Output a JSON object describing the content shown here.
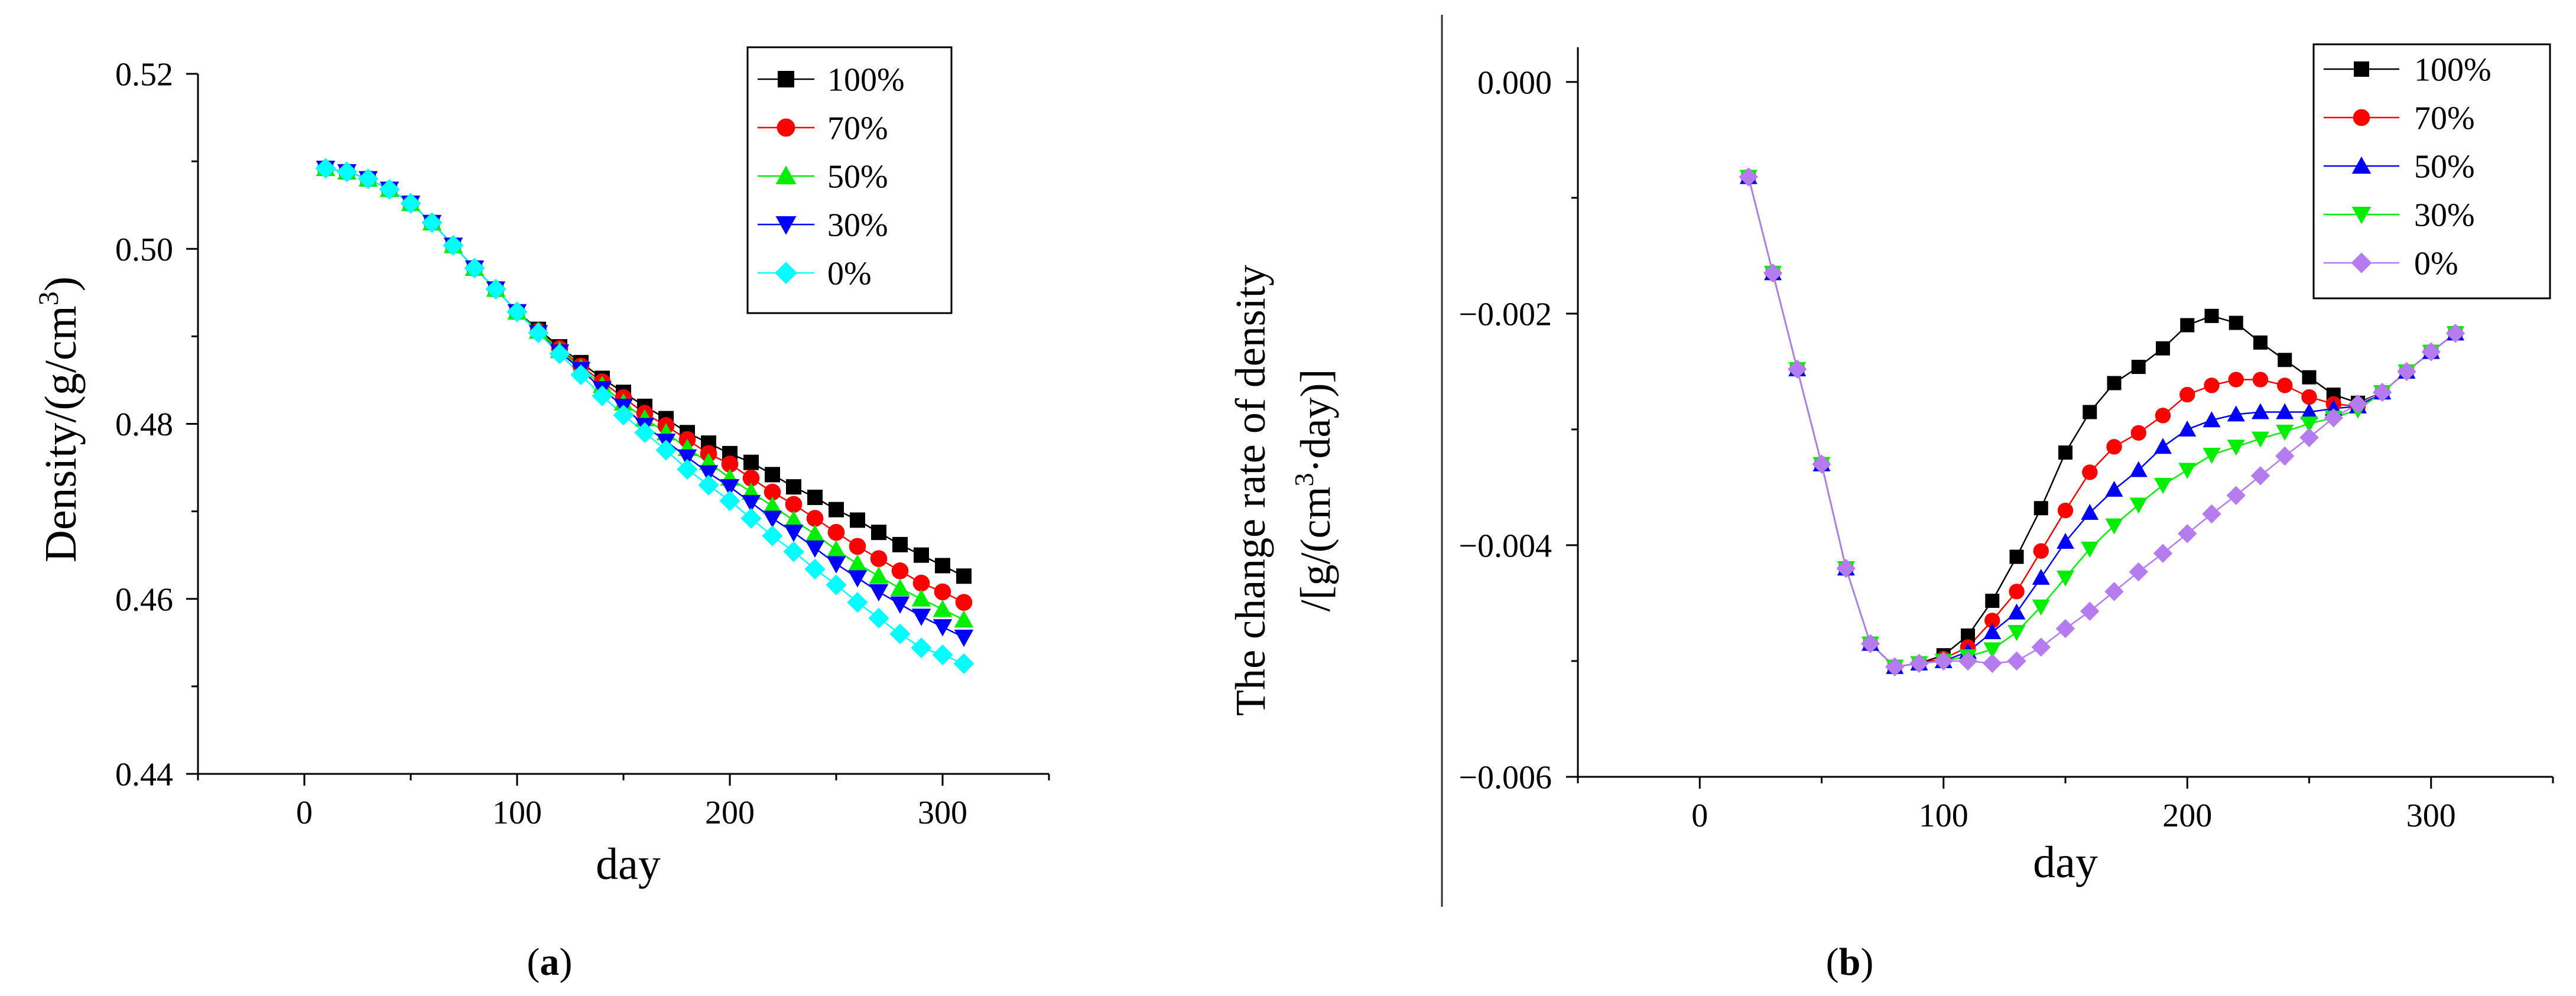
{
  "chart_data": [
    {
      "type": "scatter",
      "panel_label": "a",
      "title": "",
      "xlabel": "day",
      "ylabel_main": "Density/(g/cm",
      "ylabel_sup": "3",
      "ylabel_tail": ")",
      "xlim": [
        -50,
        350
      ],
      "ylim": [
        0.44,
        0.52
      ],
      "xticks": [
        0,
        100,
        200,
        300
      ],
      "xtick_labels": [
        "0",
        "100",
        "200",
        "300"
      ],
      "yticks": [
        0.44,
        0.46,
        0.48,
        0.5,
        0.52
      ],
      "ytick_labels": [
        "0.44",
        "0.46",
        "0.48",
        "0.50",
        "0.52"
      ],
      "legend_position": "top-right",
      "x": [
        10,
        20,
        30,
        40,
        50,
        60,
        70,
        80,
        90,
        100,
        110,
        120,
        130,
        140,
        150,
        160,
        170,
        180,
        190,
        200,
        210,
        220,
        230,
        240,
        250,
        260,
        270,
        280,
        290,
        300,
        310
      ],
      "series": [
        {
          "name": "100%",
          "color": "#000000",
          "marker": "square",
          "values": [
            0.5092,
            0.5088,
            0.508,
            0.5068,
            0.5052,
            0.503,
            0.5004,
            0.4978,
            0.4954,
            0.4928,
            0.4908,
            0.4888,
            0.487,
            0.4852,
            0.4836,
            0.482,
            0.4806,
            0.479,
            0.4778,
            0.4766,
            0.4756,
            0.4742,
            0.4728,
            0.4716,
            0.4702,
            0.469,
            0.4676,
            0.4662,
            0.465,
            0.4638,
            0.4626
          ]
        },
        {
          "name": "70%",
          "color": "#ff0000",
          "marker": "circle",
          "values": [
            0.5092,
            0.5088,
            0.508,
            0.5068,
            0.5052,
            0.503,
            0.5004,
            0.4978,
            0.4954,
            0.4928,
            0.4906,
            0.4886,
            0.4866,
            0.4848,
            0.483,
            0.4812,
            0.4798,
            0.4782,
            0.4766,
            0.4754,
            0.4738,
            0.4722,
            0.4708,
            0.4692,
            0.4676,
            0.466,
            0.4646,
            0.4632,
            0.4618,
            0.4608,
            0.4596
          ]
        },
        {
          "name": "50%",
          "color": "#00ee00",
          "marker": "triangle-up",
          "values": [
            0.5092,
            0.5088,
            0.508,
            0.5068,
            0.5052,
            0.503,
            0.5004,
            0.4978,
            0.4954,
            0.4928,
            0.4906,
            0.4884,
            0.4864,
            0.4844,
            0.4824,
            0.4806,
            0.479,
            0.4772,
            0.4756,
            0.4738,
            0.4722,
            0.4706,
            0.469,
            0.4674,
            0.4656,
            0.464,
            0.4626,
            0.4612,
            0.46,
            0.4588,
            0.4576
          ]
        },
        {
          "name": "30%",
          "color": "#0000ff",
          "marker": "triangle-down",
          "values": [
            0.5092,
            0.5088,
            0.508,
            0.5068,
            0.5052,
            0.503,
            0.5004,
            0.4978,
            0.4954,
            0.4928,
            0.4904,
            0.4882,
            0.4862,
            0.484,
            0.482,
            0.4798,
            0.478,
            0.4762,
            0.4744,
            0.4728,
            0.471,
            0.4692,
            0.4676,
            0.4658,
            0.464,
            0.4624,
            0.4608,
            0.4594,
            0.458,
            0.4568,
            0.4556
          ]
        },
        {
          "name": "0%",
          "color": "#00ffff",
          "marker": "diamond",
          "values": [
            0.5092,
            0.5088,
            0.508,
            0.5068,
            0.5052,
            0.503,
            0.5004,
            0.4978,
            0.4954,
            0.4928,
            0.4904,
            0.488,
            0.4856,
            0.4832,
            0.481,
            0.479,
            0.477,
            0.4748,
            0.473,
            0.4712,
            0.4692,
            0.4672,
            0.4654,
            0.4634,
            0.4616,
            0.4596,
            0.4578,
            0.456,
            0.4544,
            0.4536,
            0.4526
          ]
        }
      ]
    },
    {
      "type": "line",
      "panel_label": "b",
      "title": "",
      "xlabel": "day",
      "ylabel_line1": "The change rate of density",
      "ylabel_line2_main": "/[g/(cm",
      "ylabel_line2_sup": "3",
      "ylabel_line2_tail": "·day)]",
      "xlim": [
        -50,
        350
      ],
      "ylim": [
        -0.006,
        0.0003
      ],
      "xticks": [
        0,
        100,
        200,
        300
      ],
      "xtick_labels": [
        "0",
        "100",
        "200",
        "300"
      ],
      "yticks": [
        -0.006,
        -0.004,
        -0.002,
        0.0
      ],
      "ytick_labels": [
        "−0.006",
        "−0.004",
        "−0.002",
        "0.000"
      ],
      "legend_position": "top-right",
      "x": [
        20,
        30,
        40,
        50,
        60,
        70,
        80,
        90,
        100,
        110,
        120,
        130,
        140,
        150,
        160,
        170,
        180,
        190,
        200,
        210,
        220,
        230,
        240,
        250,
        260,
        270,
        280,
        290,
        300,
        310
      ],
      "series": [
        {
          "name": "100%",
          "color": "#000000",
          "marker": "square",
          "values": [
            -0.00082,
            -0.00165,
            -0.00248,
            -0.0033,
            -0.0042,
            -0.00485,
            -0.00505,
            -0.00502,
            -0.00495,
            -0.00478,
            -0.00448,
            -0.0041,
            -0.00368,
            -0.0032,
            -0.00285,
            -0.0026,
            -0.00246,
            -0.0023,
            -0.0021,
            -0.00202,
            -0.00208,
            -0.00225,
            -0.0024,
            -0.00255,
            -0.0027,
            -0.00277,
            -0.00268,
            -0.0025,
            -0.00233,
            -0.00217
          ]
        },
        {
          "name": "70%",
          "color": "#ff0000",
          "marker": "circle",
          "values": [
            -0.00082,
            -0.00165,
            -0.00248,
            -0.0033,
            -0.0042,
            -0.00485,
            -0.00505,
            -0.00502,
            -0.00498,
            -0.00488,
            -0.00465,
            -0.0044,
            -0.00405,
            -0.0037,
            -0.00337,
            -0.00315,
            -0.00303,
            -0.00288,
            -0.0027,
            -0.00262,
            -0.00257,
            -0.00257,
            -0.00262,
            -0.00272,
            -0.00278,
            -0.0028,
            -0.00268,
            -0.0025,
            -0.00233,
            -0.00217
          ]
        },
        {
          "name": "50%",
          "color": "#0000ff",
          "marker": "triangle-up",
          "values": [
            -0.00082,
            -0.00165,
            -0.00248,
            -0.0033,
            -0.0042,
            -0.00485,
            -0.00505,
            -0.00502,
            -0.005,
            -0.00492,
            -0.00475,
            -0.00458,
            -0.00428,
            -0.00397,
            -0.00372,
            -0.00352,
            -0.00335,
            -0.00315,
            -0.003,
            -0.00292,
            -0.00287,
            -0.00285,
            -0.00285,
            -0.00285,
            -0.00282,
            -0.0028,
            -0.00268,
            -0.0025,
            -0.00233,
            -0.00217
          ]
        },
        {
          "name": "30%",
          "color": "#00ee00",
          "marker": "triangle-down",
          "values": [
            -0.00082,
            -0.00165,
            -0.00248,
            -0.0033,
            -0.0042,
            -0.00485,
            -0.00505,
            -0.00502,
            -0.005,
            -0.00496,
            -0.0049,
            -0.00475,
            -0.00453,
            -0.00428,
            -0.00403,
            -0.00383,
            -0.00365,
            -0.00348,
            -0.00335,
            -0.00322,
            -0.00315,
            -0.00308,
            -0.00302,
            -0.00295,
            -0.0029,
            -0.00283,
            -0.00268,
            -0.0025,
            -0.00233,
            -0.00217
          ]
        },
        {
          "name": "0%",
          "color": "#b57cf0",
          "marker": "diamond",
          "values": [
            -0.00082,
            -0.00165,
            -0.00248,
            -0.0033,
            -0.0042,
            -0.00485,
            -0.00505,
            -0.00502,
            -0.005,
            -0.005,
            -0.00502,
            -0.005,
            -0.00488,
            -0.00472,
            -0.00457,
            -0.0044,
            -0.00423,
            -0.00407,
            -0.0039,
            -0.00373,
            -0.00357,
            -0.0034,
            -0.00323,
            -0.00307,
            -0.0029,
            -0.00278,
            -0.00268,
            -0.0025,
            -0.00233,
            -0.00217
          ]
        }
      ]
    }
  ]
}
